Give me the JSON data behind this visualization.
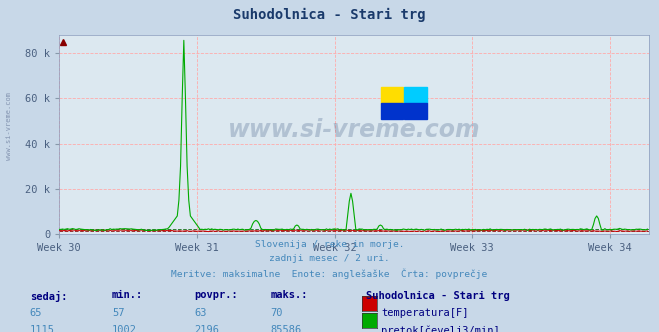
{
  "title": "Suhodolnica - Stari trg",
  "title_color": "#1a3a6b",
  "bg_color": "#c8d8e8",
  "plot_bg_color": "#dce8f0",
  "grid_color": "#ffaaaa",
  "grid_linestyle": "--",
  "x_tick_labels": [
    "Week 30",
    "Week 31",
    "Week 32",
    "Week 33",
    "Week 34"
  ],
  "x_tick_positions": [
    0,
    84,
    168,
    252,
    336
  ],
  "y_ticks": [
    0,
    20000,
    40000,
    60000,
    80000
  ],
  "y_tick_labels": [
    "0",
    "20 k",
    "40 k",
    "60 k",
    "80 k"
  ],
  "ylim": [
    0,
    88000
  ],
  "xlim": [
    0,
    360
  ],
  "total_points": 360,
  "watermark_text": "www.si-vreme.com",
  "subtitle_lines": [
    "Slovenija / reke in morje.",
    "zadnji mesec / 2 uri.",
    "Meritve: maksimalne  Enote: anglešaške  Črta: povprečje"
  ],
  "legend_station": "Suhodolnica - Stari trg",
  "legend_entries": [
    {
      "label": "temperatura[F]",
      "color": "#cc0000",
      "sedaj": 65,
      "min": 57,
      "povpr": 63,
      "maks": 70
    },
    {
      "label": "pretok[čevelj3/min]",
      "color": "#00aa00",
      "sedaj": 1115,
      "min": 1002,
      "povpr": 2196,
      "maks": 85586
    }
  ],
  "table_headers": [
    "sedaj:",
    "min.:",
    "povpr.:",
    "maks.:"
  ],
  "temp_color": "#cc0000",
  "flow_color": "#00aa00",
  "flow_avg_color": "#006600",
  "temp_avg_color": "#880000",
  "axis_label_color": "#1a3a6b",
  "tick_color": "#4a6080",
  "subtitle_color": "#4488bb",
  "left_label_color": "#888888"
}
